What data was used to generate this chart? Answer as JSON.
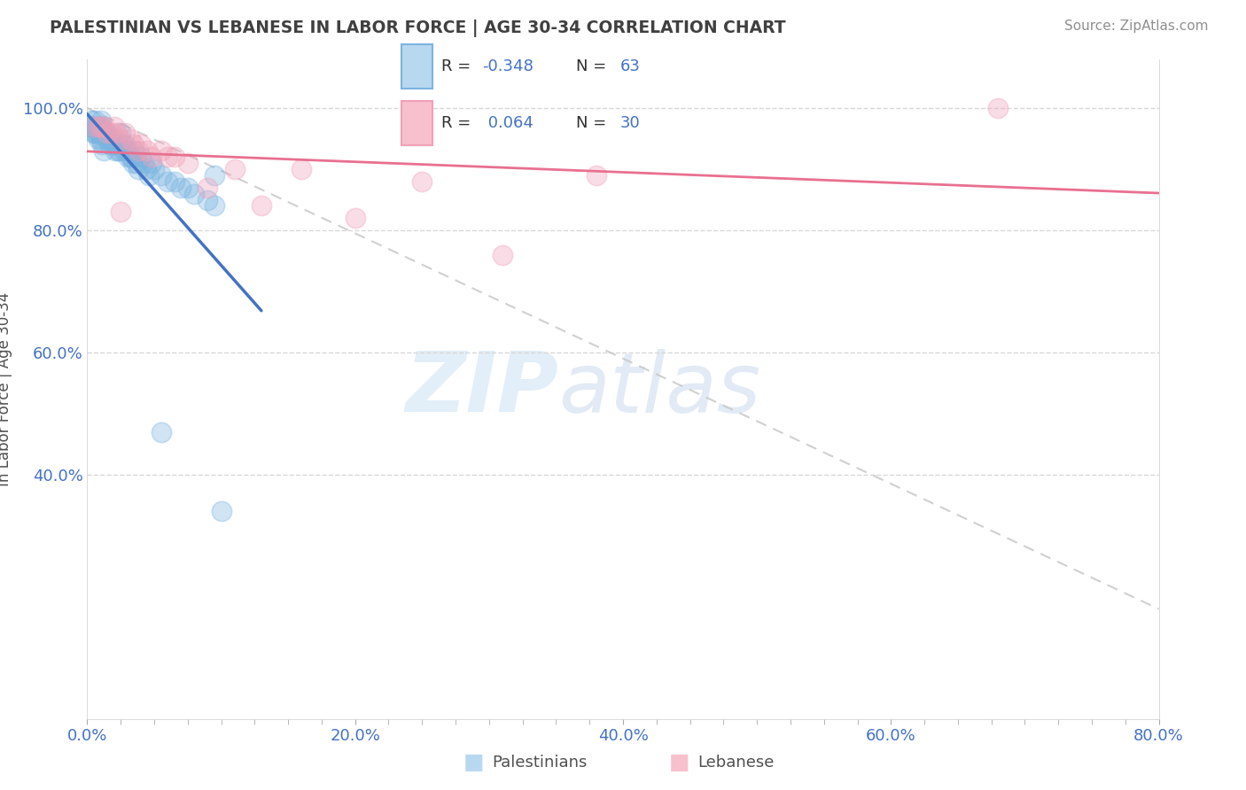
{
  "title": "PALESTINIAN VS LEBANESE IN LABOR FORCE | AGE 30-34 CORRELATION CHART",
  "source": "Source: ZipAtlas.com",
  "xlabel_ticks": [
    "0.0%",
    "",
    "",
    "",
    "",
    "",
    "",
    "",
    "20.0%",
    "",
    "",
    "",
    "",
    "",
    "",
    "",
    "40.0%",
    "",
    "",
    "",
    "",
    "",
    "",
    "",
    "60.0%",
    "",
    "",
    "",
    "",
    "",
    "",
    "",
    "80.0%"
  ],
  "xlabel_vals": [
    0.0,
    0.025,
    0.05,
    0.075,
    0.1,
    0.125,
    0.15,
    0.175,
    0.2,
    0.225,
    0.25,
    0.275,
    0.3,
    0.325,
    0.35,
    0.375,
    0.4,
    0.425,
    0.45,
    0.475,
    0.5,
    0.525,
    0.55,
    0.575,
    0.6,
    0.625,
    0.65,
    0.675,
    0.7,
    0.725,
    0.75,
    0.775,
    0.8
  ],
  "xlabel_major_ticks": [
    0.0,
    0.2,
    0.4,
    0.6,
    0.8
  ],
  "xlabel_major_labels": [
    "0.0%",
    "20.0%",
    "40.0%",
    "60.0%",
    "80.0%"
  ],
  "ylabel_ticks": [
    0.4,
    0.6,
    0.8,
    1.0
  ],
  "ylabel_labels": [
    "40.0%",
    "60.0%",
    "80.0%",
    "100.0%"
  ],
  "xmin": 0.0,
  "xmax": 0.8,
  "ymin": 0.0,
  "ymax": 1.08,
  "ylabel": "In Labor Force | Age 30-34",
  "watermark_line1": "ZIP",
  "watermark_line2": "atlas",
  "pal_scatter_x": [
    0.003,
    0.005,
    0.006,
    0.007,
    0.008,
    0.009,
    0.01,
    0.01,
    0.011,
    0.012,
    0.013,
    0.014,
    0.015,
    0.016,
    0.017,
    0.018,
    0.019,
    0.02,
    0.021,
    0.022,
    0.023,
    0.024,
    0.025,
    0.026,
    0.027,
    0.028,
    0.029,
    0.03,
    0.031,
    0.032,
    0.033,
    0.034,
    0.035,
    0.036,
    0.037,
    0.038,
    0.04,
    0.042,
    0.044,
    0.046,
    0.048,
    0.05,
    0.055,
    0.06,
    0.065,
    0.07,
    0.075,
    0.08,
    0.09,
    0.095,
    0.003,
    0.004,
    0.005,
    0.006,
    0.007,
    0.008,
    0.009,
    0.01,
    0.011,
    0.012,
    0.055,
    0.095,
    0.1
  ],
  "pal_scatter_y": [
    0.97,
    0.96,
    0.98,
    0.97,
    0.97,
    0.96,
    0.98,
    0.97,
    0.97,
    0.96,
    0.96,
    0.95,
    0.96,
    0.95,
    0.94,
    0.95,
    0.94,
    0.94,
    0.93,
    0.94,
    0.93,
    0.93,
    0.96,
    0.94,
    0.93,
    0.94,
    0.93,
    0.92,
    0.93,
    0.92,
    0.92,
    0.91,
    0.93,
    0.92,
    0.91,
    0.9,
    0.92,
    0.91,
    0.9,
    0.89,
    0.91,
    0.9,
    0.89,
    0.88,
    0.88,
    0.87,
    0.87,
    0.86,
    0.85,
    0.84,
    0.98,
    0.97,
    0.96,
    0.97,
    0.96,
    0.95,
    0.96,
    0.95,
    0.94,
    0.93,
    0.47,
    0.89,
    0.34
  ],
  "leb_scatter_x": [
    0.005,
    0.008,
    0.01,
    0.012,
    0.015,
    0.018,
    0.02,
    0.022,
    0.025,
    0.028,
    0.032,
    0.035,
    0.038,
    0.04,
    0.045,
    0.048,
    0.055,
    0.06,
    0.065,
    0.075,
    0.09,
    0.11,
    0.13,
    0.16,
    0.2,
    0.25,
    0.31,
    0.38,
    0.68,
    0.025
  ],
  "leb_scatter_y": [
    0.97,
    0.97,
    0.97,
    0.97,
    0.96,
    0.96,
    0.97,
    0.96,
    0.95,
    0.96,
    0.95,
    0.94,
    0.93,
    0.94,
    0.93,
    0.92,
    0.93,
    0.92,
    0.92,
    0.91,
    0.87,
    0.9,
    0.84,
    0.9,
    0.82,
    0.88,
    0.76,
    0.89,
    1.0,
    0.83
  ],
  "blue_line_color": "#4472c4",
  "pink_line_color": "#e87090",
  "diag_line_color": "#c8c8c8",
  "title_color": "#404040",
  "source_color": "#909090",
  "axis_label_color": "#505050",
  "tick_label_color": "#4472c4",
  "grid_color": "#d8d8d8",
  "background_color": "#ffffff",
  "legend_color": "#4472c4",
  "pal_dot_color": "#7ab4e0",
  "leb_dot_color": "#f0a0b8",
  "pal_legend_fill": "#b8d8f0",
  "pal_legend_edge": "#7ab4e0",
  "leb_legend_fill": "#f8c0cc",
  "leb_legend_edge": "#f0a0b8"
}
